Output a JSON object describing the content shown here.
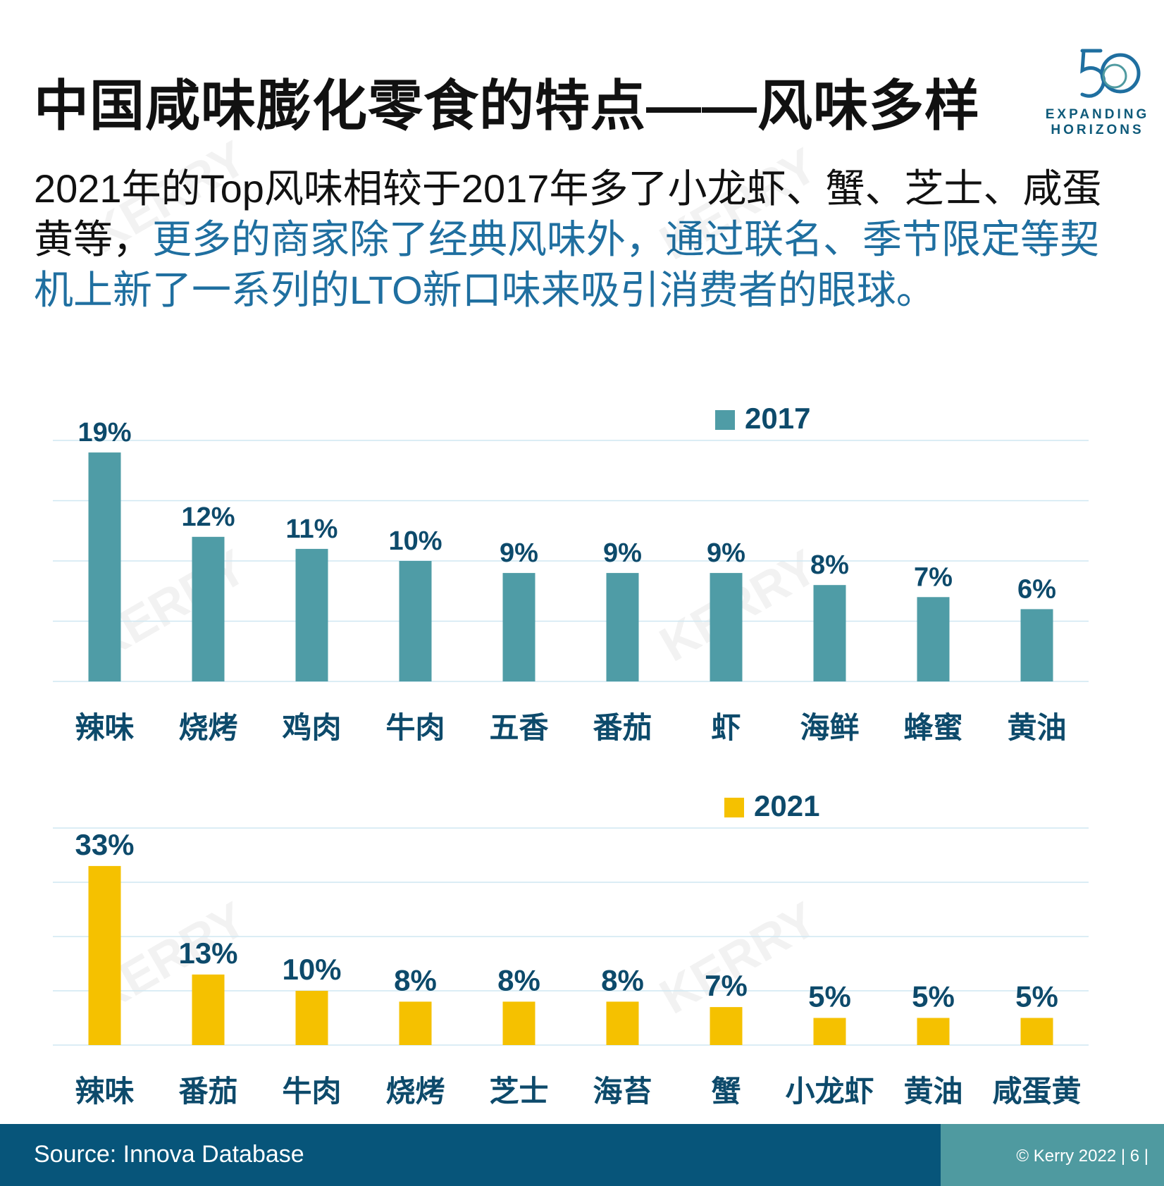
{
  "title": "中国咸味膨化零食的特点——风味多样",
  "logo": {
    "number": "50",
    "line1": "EXPANDING",
    "line2": "HORIZONS"
  },
  "lead": {
    "plain": "2021年的Top风味相较于2017年多了小龙虾、蟹、芝士、咸蛋黄等，",
    "highlight": "更多的商家除了经典风味外，通过联名、季节限定等契机上新了一系列的LTO新口味来吸引消费者的眼球。"
  },
  "watermark": "KERRY",
  "colors": {
    "series_2017": "#4f9ca6",
    "series_2021": "#f5c100",
    "label": "#0d4a6b",
    "highlight_text": "#1f6fa0",
    "footer_left": "#07557a",
    "footer_right": "#4f9aa0",
    "gridline": "#cfe7f2"
  },
  "chart_data": [
    {
      "type": "bar",
      "categories": [
        "辣味",
        "烧烤",
        "鸡肉",
        "牛肉",
        "五香",
        "番茄",
        "虾",
        "海鲜",
        "蜂蜜",
        "黄油"
      ],
      "series": [
        {
          "name": "2017",
          "values": [
            19,
            12,
            11,
            10,
            9,
            9,
            9,
            8,
            7,
            6
          ],
          "labels": [
            "19%",
            "12%",
            "11%",
            "10%",
            "9%",
            "9%",
            "9%",
            "8%",
            "7%",
            "6%"
          ]
        }
      ],
      "ylim": [
        0,
        20
      ],
      "grid": true,
      "legend_position": "top-right"
    },
    {
      "type": "bar",
      "categories": [
        "辣味",
        "番茄",
        "牛肉",
        "烧烤",
        "芝士",
        "海苔",
        "蟹",
        "小龙虾",
        "黄油",
        "咸蛋黄"
      ],
      "series": [
        {
          "name": "2021",
          "values": [
            33,
            13,
            10,
            8,
            8,
            8,
            7,
            5,
            5,
            5
          ],
          "labels": [
            "33%",
            "13%",
            "10%",
            "8%",
            "8%",
            "8%",
            "7%",
            "5%",
            "5%",
            "5%"
          ]
        }
      ],
      "ylim": [
        0,
        40
      ],
      "grid": true,
      "legend_position": "top-right"
    }
  ],
  "footer": {
    "source": "Source: Innova Database",
    "copyright": "© Kerry 2022 | 6 |"
  }
}
